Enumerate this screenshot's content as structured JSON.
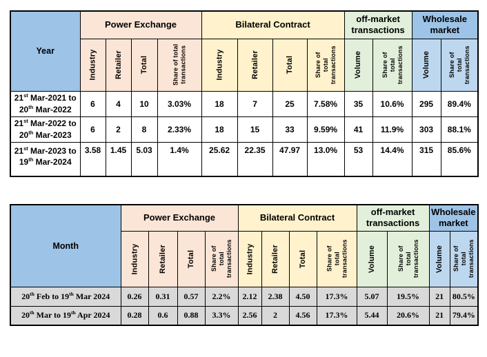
{
  "colors": {
    "header_blue": "#9DC3E6",
    "subheader_light_blue": "#BDD7EE",
    "power_exchange_peach": "#FBE5D6",
    "bilateral_yellow": "#FFF2CC",
    "off_market_green": "#E2EFDA",
    "data_row_gray": "#D9D9D9",
    "border_black": "#000000"
  },
  "table1": {
    "corner_label": "Year",
    "groups": [
      "Power Exchange",
      "Bilateral Contract",
      "off-market transactions",
      "Wholesale market"
    ],
    "subheaders": [
      "Industry",
      "Retailer",
      "Total",
      "Share of total transactions",
      "Industry",
      "Retailer",
      "Total",
      "Share of total transactions",
      "Volume",
      "Share of total transactions",
      "Volume",
      "Share of total transactions"
    ],
    "rows": [
      {
        "label": "21^{st} Mar-2021 to 20^{th} Mar-2022",
        "values": [
          "6",
          "4",
          "10",
          "3.03%",
          "18",
          "7",
          "25",
          "7.58%",
          "35",
          "10.6%",
          "295",
          "89.4%"
        ]
      },
      {
        "label": "21^{st} Mar-2022 to 20^{th} Mar-2023",
        "values": [
          "6",
          "2",
          "8",
          "2.33%",
          "18",
          "15",
          "33",
          "9.59%",
          "41",
          "11.9%",
          "303",
          "88.1%"
        ]
      },
      {
        "label": "21^{st} Mar-2023 to 19^{th} Mar-2024",
        "values": [
          "3.58",
          "1.45",
          "5.03",
          "1.4%",
          "25.62",
          "22.35",
          "47.97",
          "13.0%",
          "53",
          "14.4%",
          "315",
          "85.6%"
        ]
      }
    ]
  },
  "table2": {
    "corner_label": "Month",
    "groups": [
      "Power Exchange",
      "Bilateral Contract",
      "off-market transactions",
      "Wholesale market"
    ],
    "subheaders": [
      "Industry",
      "Retailer",
      "Total",
      "Share of total transactions",
      "Industry",
      "Retailer",
      "Total",
      "Share of total transactions",
      "Volume",
      "Share of total transactions",
      "Volume",
      "Share of total transactions"
    ],
    "rows": [
      {
        "label": "20^{th} Feb to 19^{th} Mar 2024",
        "values": [
          "0.26",
          "0.31",
          "0.57",
          "2.2%",
          "2.12",
          "2.38",
          "4.50",
          "17.3%",
          "5.07",
          "19.5%",
          "21",
          "80.5%"
        ]
      },
      {
        "label": "20^{th} Mar to 19^{th} Apr 2024",
        "values": [
          "0.28",
          "0.6",
          "0.88",
          "3.3%",
          "2.56",
          "2",
          "4.56",
          "17.3%",
          "5.44",
          "20.6%",
          "21",
          "79.4%"
        ]
      }
    ]
  }
}
